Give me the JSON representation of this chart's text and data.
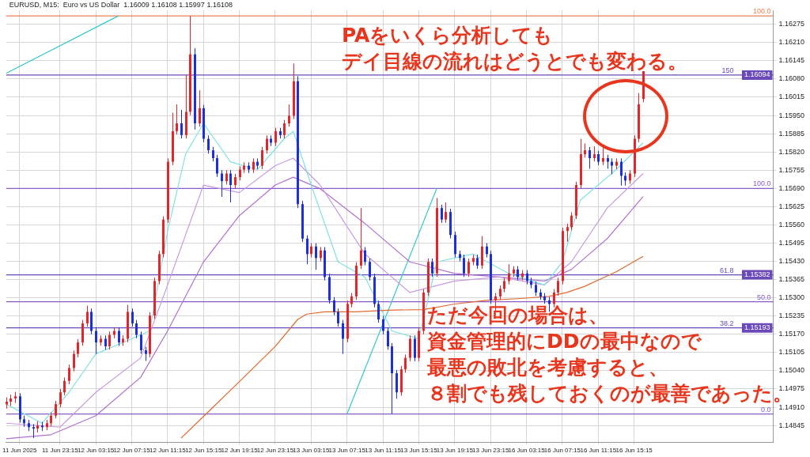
{
  "chart_data": {
    "type": "candlestick",
    "title": "EURUSD, M15:  Euro vs US Dollar  1.16009 1.16108 1.15997 1.16108",
    "annotations": [
      "PAをいくら分析してもデイ目線の流れはどうとでも変わる。",
      "ただ今回の場合は、資金管理的にDDの最中なので最悪の敗北を考慮すると、８割でも残しておくのが最善であった。",
      {
        "text": "100.0",
        "y": 1.16305
      },
      {
        "text": "150",
        "y": 1.16094
      },
      {
        "text": "100.0",
        "y": 1.1569
      },
      {
        "text": "61.8",
        "y": 1.15382
      },
      {
        "text": "50.0",
        "y": 1.15286
      },
      {
        "text": "38.2",
        "y": 1.15193
      },
      {
        "text": "0.0",
        "y": 1.14886
      }
    ],
    "categories": [
      null,
      null,
      null,
      "11 Jun 2025",
      null,
      null,
      null,
      null,
      null,
      null,
      null,
      null,
      "11 Jun 23:15",
      null,
      null,
      null,
      null,
      null,
      null,
      null,
      "12 Jun 03:15",
      null,
      null,
      null,
      null,
      null,
      null,
      null,
      "12 Jun 07:15",
      null,
      null,
      null,
      null,
      null,
      null,
      null,
      "12 Jun 11:15",
      null,
      null,
      null,
      null,
      null,
      null,
      null,
      "12 Jun 15:15",
      null,
      null,
      null,
      null,
      null,
      null,
      null,
      "12 Jun 19:15",
      null,
      null,
      null,
      null,
      null,
      null,
      null,
      "12 Jun 23:15",
      null,
      null,
      null,
      null,
      null,
      null,
      null,
      "13 Jun 03:15",
      null,
      null,
      null,
      null,
      null,
      null,
      null,
      "13 Jun 07:15",
      null,
      null,
      null,
      null,
      null,
      null,
      null,
      "13 Jun 11:15",
      null,
      null,
      null,
      null,
      null,
      null,
      null,
      "13 Jun 15:15",
      null,
      null,
      null,
      null,
      null,
      null,
      null,
      "13 Jun 19:15",
      null,
      null,
      null,
      null,
      null,
      null,
      null,
      "13 Jun 23:15",
      null,
      null,
      null,
      null,
      null,
      null,
      null,
      "16 Jun 03:15",
      null,
      null,
      null,
      null,
      null,
      null,
      null,
      "16 Jun 07:15",
      null,
      null,
      null,
      null,
      null,
      null,
      null,
      "16 Jun 11:15",
      null,
      null,
      null,
      null,
      null,
      null,
      null,
      "16 Jun 15:15",
      null,
      null,
      null,
      null,
      null,
      null,
      null,
      null,
      null,
      null,
      null,
      null,
      null,
      null,
      null,
      null,
      null,
      null,
      null,
      null,
      null,
      null,
      null,
      null,
      null,
      null,
      null,
      null,
      null,
      null,
      null
    ],
    "ohlc": [
      [
        1.1492,
        1.14945,
        1.14905,
        1.1493
      ],
      [
        1.1493,
        1.14955,
        1.14915,
        1.14941
      ],
      [
        1.14941,
        1.14965,
        1.14925,
        1.14949
      ],
      [
        1.14949,
        1.1496,
        1.14855,
        1.14867
      ],
      [
        1.14867,
        1.1488,
        1.1484,
        1.14853
      ],
      [
        1.14853,
        1.14865,
        1.14825,
        1.14839
      ],
      [
        1.14839,
        1.1485,
        1.148,
        1.14834
      ],
      [
        1.14834,
        1.1486,
        1.1482,
        1.14845
      ],
      [
        1.14845,
        1.14858,
        1.14825,
        1.14839
      ],
      [
        1.14839,
        1.14865,
        1.14828,
        1.14853
      ],
      [
        1.14853,
        1.14892,
        1.14842,
        1.1488
      ],
      [
        1.1488,
        1.14933,
        1.1487,
        1.14921
      ],
      [
        1.14921,
        1.14975,
        1.1491,
        1.14963
      ],
      [
        1.14963,
        1.15016,
        1.14952,
        1.15004
      ],
      [
        1.15004,
        1.15062,
        1.14992,
        1.1505
      ],
      [
        1.1505,
        1.15112,
        1.15038,
        1.151
      ],
      [
        1.151,
        1.15153,
        1.15088,
        1.15141
      ],
      [
        1.15141,
        1.15221,
        1.15129,
        1.15209
      ],
      [
        1.15209,
        1.15272,
        1.15197,
        1.1525
      ],
      [
        1.1525,
        1.15262,
        1.1517,
        1.15182
      ],
      [
        1.15182,
        1.15194,
        1.151,
        1.15141
      ],
      [
        1.15141,
        1.15166,
        1.15129,
        1.15154
      ],
      [
        1.15154,
        1.15166,
        1.15115,
        1.15127
      ],
      [
        1.15127,
        1.1518,
        1.15115,
        1.15168
      ],
      [
        1.15168,
        1.15194,
        1.15156,
        1.15182
      ],
      [
        1.15182,
        1.15194,
        1.15129,
        1.15141
      ],
      [
        1.15141,
        1.15166,
        1.15129,
        1.15154
      ],
      [
        1.15154,
        1.15275,
        1.15142,
        1.1525
      ],
      [
        1.1525,
        1.15262,
        1.15197,
        1.15209
      ],
      [
        1.15209,
        1.15221,
        1.15156,
        1.15168
      ],
      [
        1.15168,
        1.1518,
        1.15101,
        1.15113
      ],
      [
        1.15113,
        1.15125,
        1.15075,
        1.151
      ],
      [
        1.151,
        1.15249,
        1.15088,
        1.15237
      ],
      [
        1.15237,
        1.15372,
        1.15225,
        1.1536
      ],
      [
        1.1536,
        1.15468,
        1.15348,
        1.15456
      ],
      [
        1.15456,
        1.15591,
        1.15444,
        1.15579
      ],
      [
        1.15579,
        1.15797,
        1.15567,
        1.15785
      ],
      [
        1.15785,
        1.1596,
        1.15773,
        1.15894
      ],
      [
        1.15894,
        1.1599,
        1.15882,
        1.15922
      ],
      [
        1.15922,
        1.1597,
        1.15868,
        1.1588
      ],
      [
        1.1588,
        1.16094,
        1.15868,
        1.15963
      ],
      [
        1.15963,
        1.16305,
        1.15951,
        1.16168
      ],
      [
        1.16168,
        1.1619,
        1.159,
        1.15922
      ],
      [
        1.15922,
        1.1604,
        1.1591,
        1.15976
      ],
      [
        1.15976,
        1.15988,
        1.15855,
        1.15867
      ],
      [
        1.15867,
        1.15879,
        1.15814,
        1.15826
      ],
      [
        1.15826,
        1.15838,
        1.15786,
        1.15798
      ],
      [
        1.15798,
        1.1581,
        1.15731,
        1.15743
      ],
      [
        1.15743,
        1.15755,
        1.1566,
        1.15716
      ],
      [
        1.15716,
        1.15755,
        1.15704,
        1.15743
      ],
      [
        1.15743,
        1.15755,
        1.1564,
        1.15702
      ],
      [
        1.15702,
        1.15742,
        1.1569,
        1.1573
      ],
      [
        1.1573,
        1.15769,
        1.15718,
        1.15757
      ],
      [
        1.15757,
        1.15783,
        1.15745,
        1.15771
      ],
      [
        1.15771,
        1.15783,
        1.15745,
        1.15757
      ],
      [
        1.15757,
        1.15797,
        1.15745,
        1.15785
      ],
      [
        1.15785,
        1.15797,
        1.15759,
        1.15771
      ],
      [
        1.15771,
        1.15838,
        1.15759,
        1.15826
      ],
      [
        1.15826,
        1.15879,
        1.15814,
        1.15867
      ],
      [
        1.15867,
        1.15879,
        1.15841,
        1.15853
      ],
      [
        1.15853,
        1.15906,
        1.15841,
        1.15894
      ],
      [
        1.15894,
        1.15906,
        1.15868,
        1.1588
      ],
      [
        1.1588,
        1.15934,
        1.15868,
        1.15922
      ],
      [
        1.15922,
        1.1599,
        1.1591,
        1.15949
      ],
      [
        1.15949,
        1.16135,
        1.15937,
        1.16072
      ],
      [
        1.16072,
        1.1609,
        1.1562,
        1.15634
      ],
      [
        1.15634,
        1.15646,
        1.15499,
        1.15511
      ],
      [
        1.15511,
        1.15523,
        1.1542,
        1.15456
      ],
      [
        1.15456,
        1.15495,
        1.15444,
        1.15483
      ],
      [
        1.15483,
        1.15495,
        1.154,
        1.15442
      ],
      [
        1.15442,
        1.15481,
        1.1543,
        1.15469
      ],
      [
        1.15469,
        1.15481,
        1.15362,
        1.15374
      ],
      [
        1.15374,
        1.15386,
        1.15279,
        1.15291
      ],
      [
        1.15291,
        1.15303,
        1.15238,
        1.1525
      ],
      [
        1.1525,
        1.15262,
        1.15197,
        1.15209
      ],
      [
        1.15209,
        1.15221,
        1.151,
        1.15154
      ],
      [
        1.15154,
        1.1529,
        1.15142,
        1.15278
      ],
      [
        1.15278,
        1.15317,
        1.15266,
        1.15305
      ],
      [
        1.15305,
        1.15427,
        1.15293,
        1.15415
      ],
      [
        1.15415,
        1.1562,
        1.15403,
        1.15469
      ],
      [
        1.15469,
        1.15481,
        1.15416,
        1.15428
      ],
      [
        1.15428,
        1.1544,
        1.15362,
        1.15374
      ],
      [
        1.15374,
        1.15386,
        1.15266,
        1.15278
      ],
      [
        1.15278,
        1.1529,
        1.15211,
        1.15223
      ],
      [
        1.15223,
        1.15235,
        1.1517,
        1.15182
      ],
      [
        1.15182,
        1.15194,
        1.15115,
        1.15127
      ],
      [
        1.15127,
        1.15139,
        1.14886,
        1.15031
      ],
      [
        1.15031,
        1.15043,
        1.1494,
        1.14963
      ],
      [
        1.14963,
        1.15057,
        1.14951,
        1.15045
      ],
      [
        1.15045,
        1.15098,
        1.15033,
        1.15086
      ],
      [
        1.15086,
        1.15166,
        1.15074,
        1.15154
      ],
      [
        1.15154,
        1.15166,
        1.15074,
        1.15086
      ],
      [
        1.15086,
        1.15194,
        1.15074,
        1.15182
      ],
      [
        1.15182,
        1.15331,
        1.1517,
        1.15319
      ],
      [
        1.15319,
        1.1544,
        1.15307,
        1.15428
      ],
      [
        1.15428,
        1.1544,
        1.15375,
        1.15387
      ],
      [
        1.15387,
        1.15656,
        1.15375,
        1.1562
      ],
      [
        1.1562,
        1.15632,
        1.15567,
        1.15579
      ],
      [
        1.15579,
        1.1564,
        1.15567,
        1.15606
      ],
      [
        1.15606,
        1.15618,
        1.15512,
        1.15524
      ],
      [
        1.15524,
        1.15536,
        1.15444,
        1.15456
      ],
      [
        1.15456,
        1.15468,
        1.1543,
        1.15442
      ],
      [
        1.15442,
        1.15454,
        1.15375,
        1.15387
      ],
      [
        1.15387,
        1.1544,
        1.15375,
        1.15428
      ],
      [
        1.15428,
        1.15454,
        1.15416,
        1.15442
      ],
      [
        1.15442,
        1.15454,
        1.15403,
        1.15415
      ],
      [
        1.15415,
        1.1552,
        1.15403,
        1.15483
      ],
      [
        1.15483,
        1.15495,
        1.15444,
        1.15456
      ],
      [
        1.15456,
        1.15468,
        1.15279,
        1.15291
      ],
      [
        1.15291,
        1.15317,
        1.1525,
        1.15305
      ],
      [
        1.15305,
        1.15344,
        1.15293,
        1.15332
      ],
      [
        1.15332,
        1.15372,
        1.1532,
        1.1536
      ],
      [
        1.1536,
        1.1542,
        1.15348,
        1.15387
      ],
      [
        1.15387,
        1.15413,
        1.15375,
        1.15401
      ],
      [
        1.15401,
        1.15413,
        1.15362,
        1.15374
      ],
      [
        1.15374,
        1.15399,
        1.15362,
        1.15387
      ],
      [
        1.15387,
        1.15399,
        1.15348,
        1.1536
      ],
      [
        1.1536,
        1.15372,
        1.15334,
        1.15346
      ],
      [
        1.15346,
        1.15358,
        1.15307,
        1.15319
      ],
      [
        1.15319,
        1.15331,
        1.15293,
        1.15305
      ],
      [
        1.15305,
        1.15317,
        1.15279,
        1.15291
      ],
      [
        1.15291,
        1.15303,
        1.1525,
        1.15278
      ],
      [
        1.15278,
        1.15331,
        1.15266,
        1.15319
      ],
      [
        1.15319,
        1.15372,
        1.15307,
        1.1536
      ],
      [
        1.1536,
        1.1555,
        1.15348,
        1.15538
      ],
      [
        1.15538,
        1.15564,
        1.155,
        1.15552
      ],
      [
        1.15552,
        1.15605,
        1.1554,
        1.15593
      ],
      [
        1.15593,
        1.15714,
        1.15581,
        1.15702
      ],
      [
        1.15702,
        1.15867,
        1.1569,
        1.15812
      ],
      [
        1.15812,
        1.1585,
        1.158,
        1.15826
      ],
      [
        1.15826,
        1.15838,
        1.1576,
        1.15798
      ],
      [
        1.15798,
        1.1584,
        1.15786,
        1.15812
      ],
      [
        1.15812,
        1.15824,
        1.15773,
        1.15785
      ],
      [
        1.15785,
        1.1584,
        1.15773,
        1.15798
      ],
      [
        1.15798,
        1.1581,
        1.1576,
        1.15785
      ],
      [
        1.15785,
        1.15797,
        1.1574,
        1.15771
      ],
      [
        1.15771,
        1.15797,
        1.15759,
        1.15785
      ],
      [
        1.15785,
        1.15797,
        1.157,
        1.15735
      ],
      [
        1.15735,
        1.15747,
        1.157,
        1.15718
      ],
      [
        1.15718,
        1.15755,
        1.15706,
        1.15743
      ],
      [
        1.15743,
        1.15879,
        1.15731,
        1.15867
      ],
      [
        1.15867,
        1.1603,
        1.15855,
        1.1599
      ],
      [
        1.16009,
        1.16108,
        1.15997,
        1.16108
      ],
      null,
      null,
      null,
      null,
      null,
      null,
      null,
      null,
      null,
      null,
      null,
      null,
      null,
      null,
      null,
      null,
      null,
      null,
      null,
      null,
      null,
      null,
      null,
      null,
      null,
      null,
      null,
      null,
      null
    ],
    "series": [
      {
        "type": "line",
        "color": "#e06a2c",
        "values": [
          null,
          null,
          null,
          null,
          null,
          null,
          null,
          null,
          null,
          null,
          null,
          null,
          null,
          null,
          null,
          null,
          null,
          null,
          null,
          null,
          null,
          null,
          null,
          null,
          null,
          null,
          null,
          null,
          null,
          null,
          null,
          null,
          null,
          null,
          null,
          null,
          null,
          null,
          null,
          1.148,
          null,
          null,
          null,
          null,
          null,
          null,
          1.14908,
          null,
          null,
          null,
          null,
          null,
          null,
          1.15017,
          null,
          null,
          null,
          null,
          null,
          null,
          1.15127,
          null,
          null,
          null,
          null,
          1.15223,
          null,
          1.15242,
          null,
          null,
          null,
          1.1525,
          null,
          null,
          null,
          null,
          null,
          null,
          1.1525,
          null,
          null,
          null,
          null,
          null,
          null,
          1.15256,
          null,
          null,
          null,
          null,
          null,
          null,
          null,
          1.15258,
          null,
          null,
          null,
          null,
          null,
          null,
          1.15278,
          null,
          null,
          null,
          null,
          null,
          null,
          1.15291,
          null,
          null,
          null,
          null,
          null,
          null,
          1.15297,
          null,
          null,
          null,
          null,
          null,
          null,
          1.15305,
          null,
          null,
          null,
          1.15319,
          null,
          null,
          null,
          1.15341,
          null,
          null,
          null,
          null,
          null,
          null,
          1.15393,
          null,
          null,
          null,
          null,
          null,
          1.15448,
          null,
          null,
          null,
          null,
          null,
          null,
          null,
          null,
          null,
          null,
          null,
          null,
          null,
          null,
          null,
          null,
          null,
          null,
          null,
          null,
          null,
          null,
          null,
          null,
          null,
          null,
          null,
          null,
          null
        ]
      },
      {
        "type": "line",
        "color": "#7fe3e0",
        "values": [
          1.14921,
          null,
          null,
          null,
          null,
          null,
          null,
          null,
          1.14853,
          null,
          null,
          null,
          null,
          null,
          1.14963,
          null,
          null,
          null,
          null,
          null,
          1.151,
          null,
          null,
          null,
          null,
          null,
          null,
          null,
          1.15154,
          null,
          null,
          null,
          1.15182,
          null,
          null,
          null,
          1.15538,
          null,
          null,
          null,
          1.15812,
          null,
          null,
          null,
          1.15922,
          null,
          null,
          null,
          null,
          null,
          1.15785,
          null,
          null,
          null,
          null,
          null,
          1.15757,
          null,
          null,
          null,
          null,
          null,
          1.15867,
          null,
          1.15894,
          null,
          null,
          null,
          1.15702,
          null,
          null,
          null,
          null,
          null,
          1.15428,
          null,
          null,
          null,
          null,
          null,
          1.15374,
          null,
          null,
          null,
          null,
          null,
          1.15182,
          null,
          null,
          null,
          null,
          null,
          1.15154,
          null,
          null,
          null,
          1.15428,
          null,
          null,
          null,
          null,
          null,
          null,
          null,
          1.15456,
          null,
          null,
          null,
          null,
          null,
          null,
          null,
          1.15387,
          null,
          null,
          null,
          null,
          null,
          null,
          null,
          1.15346,
          null,
          null,
          null,
          1.15428,
          null,
          null,
          null,
          1.15648,
          null,
          null,
          null,
          null,
          null,
          null,
          null,
          1.15757,
          null,
          null,
          null,
          null,
          null,
          1.15853,
          null,
          null,
          null,
          null,
          null,
          null,
          null,
          null,
          null,
          null,
          null,
          null,
          null,
          null,
          null,
          null,
          null,
          null,
          null,
          null,
          null,
          null,
          null,
          null,
          null,
          null,
          null,
          null,
          null
        ]
      },
      {
        "type": "line",
        "color": "#c79be0",
        "values": [
          1.14853,
          null,
          null,
          null,
          null,
          null,
          null,
          null,
          null,
          null,
          null,
          null,
          1.14839,
          null,
          null,
          null,
          null,
          null,
          null,
          null,
          1.14963,
          null,
          null,
          null,
          null,
          null,
          null,
          null,
          null,
          null,
          1.15086,
          null,
          null,
          null,
          null,
          null,
          1.15346,
          null,
          null,
          null,
          null,
          null,
          null,
          null,
          1.15702,
          null,
          null,
          null,
          null,
          null,
          null,
          null,
          1.15675,
          null,
          null,
          null,
          null,
          null,
          null,
          null,
          1.15771,
          null,
          null,
          null,
          1.15798,
          null,
          null,
          null,
          null,
          null,
          1.15702,
          null,
          null,
          null,
          null,
          null,
          null,
          null,
          null,
          null,
          1.15456,
          null,
          null,
          null,
          null,
          null,
          null,
          null,
          null,
          null,
          1.15319,
          null,
          null,
          null,
          null,
          null,
          null,
          null,
          null,
          null,
          1.1536,
          null,
          null,
          null,
          null,
          null,
          null,
          null,
          null,
          null,
          1.15374,
          null,
          null,
          null,
          null,
          null,
          null,
          null,
          null,
          null,
          1.15346,
          null,
          null,
          null,
          null,
          null,
          1.15428,
          null,
          null,
          null,
          null,
          null,
          null,
          null,
          1.1562,
          null,
          null,
          null,
          null,
          null,
          null,
          null,
          1.15743,
          null,
          null,
          null,
          null,
          null,
          null,
          null,
          null,
          null,
          null,
          null,
          null,
          null,
          null,
          null,
          null,
          null,
          null,
          null,
          null,
          null,
          null,
          null,
          null,
          null,
          null,
          null,
          null,
          null
        ]
      },
      {
        "type": "line",
        "color": "#b070d0",
        "values": [
          1.14798,
          null,
          null,
          null,
          null,
          null,
          null,
          null,
          null,
          null,
          1.14812,
          null,
          null,
          null,
          null,
          null,
          null,
          null,
          null,
          null,
          1.1488,
          null,
          null,
          null,
          null,
          null,
          null,
          null,
          null,
          null,
          1.15017,
          null,
          null,
          null,
          null,
          null,
          1.15182,
          null,
          null,
          null,
          null,
          null,
          null,
          null,
          1.15428,
          null,
          null,
          null,
          null,
          null,
          null,
          null,
          1.15593,
          null,
          null,
          null,
          null,
          null,
          null,
          null,
          1.15702,
          null,
          null,
          null,
          1.1573,
          null,
          null,
          null,
          null,
          null,
          1.15689,
          null,
          null,
          null,
          null,
          null,
          null,
          null,
          null,
          null,
          1.15565,
          null,
          null,
          null,
          null,
          null,
          null,
          null,
          null,
          null,
          1.15428,
          null,
          null,
          null,
          null,
          null,
          null,
          null,
          null,
          null,
          1.15387,
          null,
          null,
          null,
          null,
          null,
          null,
          null,
          null,
          null,
          1.15374,
          null,
          null,
          null,
          null,
          null,
          null,
          null,
          null,
          null,
          1.1536,
          null,
          null,
          null,
          null,
          null,
          1.15401,
          null,
          null,
          null,
          null,
          null,
          null,
          null,
          1.15511,
          null,
          null,
          null,
          null,
          null,
          null,
          null,
          1.15661,
          null,
          null,
          null,
          null,
          null,
          null,
          null,
          null,
          null,
          null,
          null,
          null,
          null,
          null,
          null,
          null,
          null,
          null,
          null,
          null,
          null,
          null,
          null,
          null,
          null,
          null,
          null,
          null,
          null
        ]
      },
      {
        "type": "line",
        "color": "#35c9c9",
        "values": [
          1.161,
          null,
          null,
          null,
          null,
          null,
          null,
          null,
          null,
          null,
          null,
          null,
          null,
          null,
          null,
          null,
          null,
          null,
          null,
          null,
          null,
          null,
          null,
          null,
          null,
          1.16305,
          null,
          null,
          null,
          null,
          null,
          null,
          null,
          null,
          null,
          null,
          null,
          null,
          null,
          null,
          null,
          null,
          null,
          null,
          null,
          null,
          null,
          null,
          null,
          null,
          null,
          null,
          null,
          null,
          null,
          null,
          null,
          null,
          null,
          null,
          null,
          null,
          null,
          null,
          null,
          null,
          null,
          null,
          null,
          null,
          null,
          null,
          null,
          null,
          null,
          null,
          null,
          null,
          null,
          null,
          null,
          null,
          null,
          null,
          null,
          null,
          null,
          null,
          null,
          null,
          null,
          null,
          null,
          null,
          null,
          null,
          null,
          null,
          null,
          null,
          null,
          null,
          null,
          null,
          null,
          null,
          null,
          null,
          null,
          null,
          null,
          null,
          null,
          null,
          null,
          null,
          null,
          null,
          null,
          null,
          null,
          null,
          null,
          null,
          null,
          null,
          null,
          null,
          null,
          null,
          null,
          null,
          null,
          null,
          null,
          null,
          null,
          null,
          null,
          null,
          null,
          null,
          null,
          null,
          null,
          null,
          null,
          null,
          null,
          null,
          null,
          null,
          null,
          null,
          null,
          null,
          null,
          null,
          null,
          null,
          null,
          null,
          null,
          null,
          null,
          null,
          null,
          null,
          null,
          null,
          null,
          null
        ]
      },
      {
        "type": "line",
        "color": "#35c9c9",
        "values": [
          null,
          null,
          null,
          null,
          null,
          null,
          null,
          null,
          null,
          null,
          null,
          null,
          null,
          null,
          null,
          null,
          null,
          null,
          null,
          null,
          null,
          null,
          null,
          null,
          null,
          null,
          null,
          null,
          null,
          null,
          null,
          null,
          null,
          null,
          null,
          null,
          null,
          null,
          null,
          null,
          null,
          null,
          null,
          null,
          null,
          null,
          null,
          null,
          null,
          null,
          null,
          null,
          null,
          null,
          null,
          null,
          null,
          null,
          null,
          null,
          null,
          null,
          null,
          null,
          null,
          null,
          null,
          null,
          null,
          null,
          null,
          null,
          null,
          null,
          null,
          null,
          1.14886,
          null,
          null,
          null,
          null,
          null,
          null,
          null,
          null,
          null,
          null,
          null,
          null,
          null,
          null,
          null,
          null,
          null,
          null,
          null,
          1.1569,
          null,
          null,
          null,
          null,
          null,
          null,
          null,
          null,
          null,
          null,
          null,
          null,
          null,
          null,
          null,
          null,
          null,
          null,
          null,
          null,
          null,
          null,
          null,
          null,
          null,
          null,
          null,
          null,
          null,
          null,
          null,
          null,
          null,
          null,
          null,
          null,
          null,
          null,
          null,
          null,
          null,
          null,
          null,
          null,
          null,
          null,
          null,
          null,
          null,
          null,
          null,
          null,
          null,
          null,
          null,
          null,
          null,
          null,
          null,
          null,
          null,
          null,
          null,
          null,
          null,
          null,
          null,
          null,
          null,
          null,
          null,
          null,
          null,
          null,
          null
        ]
      }
    ],
    "ylim": [
      1.14785,
      1.16325
    ],
    "yticks": [
      1.14845,
      {
        "value": 1.1491,
        "label": "1.14910"
      },
      1.14975,
      {
        "value": 1.1504,
        "label": "1.15040"
      },
      1.15105,
      {
        "value": 1.1517,
        "label": "1.15170"
      },
      1.15235,
      {
        "value": 1.153,
        "label": "1.15300"
      },
      1.15365,
      {
        "value": 1.1543,
        "label": "1.15430"
      },
      1.15495,
      {
        "value": 1.1556,
        "label": "1.15560"
      },
      1.15625,
      {
        "value": 1.1569,
        "label": "1.15690"
      },
      1.15755,
      {
        "value": 1.1582,
        "label": "1.15820"
      },
      1.15885,
      {
        "value": 1.1595,
        "label": "1.15950"
      },
      1.16015,
      {
        "value": 1.1608,
        "label": "1.16080"
      },
      1.16145,
      {
        "value": 1.1621,
        "label": "1.16210"
      },
      1.16275
    ],
    "ref_lines": [
      {
        "axis": "y",
        "value": 1.16305,
        "color": "#f08050"
      },
      {
        "axis": "y",
        "value": 1.16094,
        "label": "1.16094",
        "color": "#6a4ab8"
      },
      {
        "axis": "y",
        "value": 1.1569,
        "color": "#8a5cc8"
      },
      {
        "axis": "y",
        "value": 1.15382,
        "label": "1.15382",
        "color": "#6a4ab8"
      },
      {
        "axis": "y",
        "value": 1.15286,
        "color": "#8a5cc8"
      },
      {
        "axis": "y",
        "value": 1.15193,
        "label": "1.15193",
        "color": "#6a4ab8"
      },
      {
        "axis": "y",
        "value": 1.14886,
        "color": "#8a5cc8"
      }
    ],
    "grid": true
  }
}
